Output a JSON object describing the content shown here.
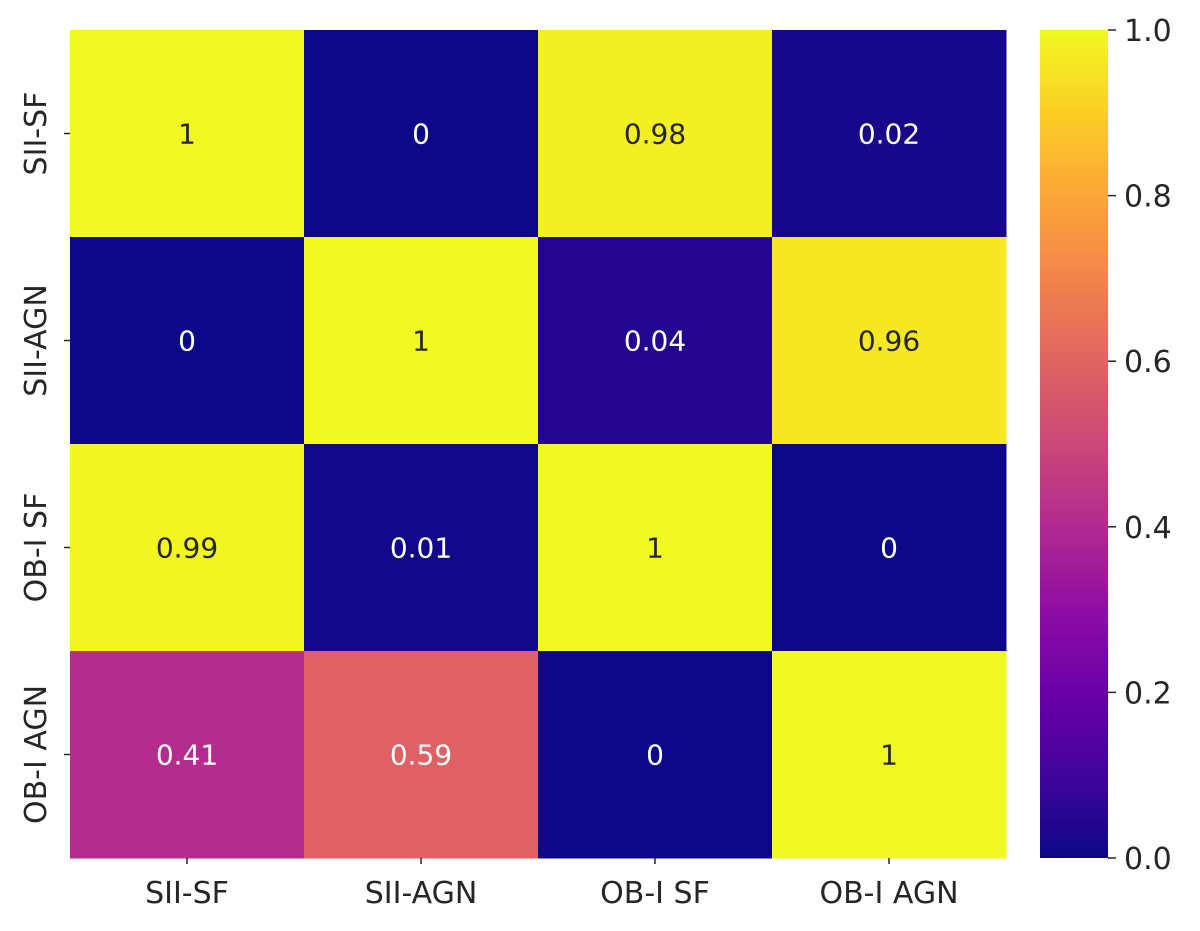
{
  "chart_data": {
    "type": "heatmap",
    "colormap": "plasma",
    "rows": [
      "SII-SF",
      "SII-AGN",
      "OB-I SF",
      "OB-I AGN"
    ],
    "columns": [
      "SII-SF",
      "SII-AGN",
      "OB-I SF",
      "OB-I AGN"
    ],
    "values": [
      [
        1,
        0,
        0.98,
        0.02
      ],
      [
        0,
        1,
        0.04,
        0.96
      ],
      [
        0.99,
        0.01,
        1,
        0
      ],
      [
        0.41,
        0.59,
        0,
        1
      ]
    ],
    "cell_labels": [
      [
        "1",
        "0",
        "0.98",
        "0.02"
      ],
      [
        "0",
        "1",
        "0.04",
        "0.96"
      ],
      [
        "0.99",
        "0.01",
        "1",
        "0"
      ],
      [
        "0.41",
        "0.59",
        "0",
        "1"
      ]
    ],
    "colorbar": {
      "range": [
        0.0,
        1.0
      ],
      "ticks": [
        0.0,
        0.2,
        0.4,
        0.6,
        0.8,
        1.0
      ],
      "tick_labels": [
        "0.0",
        "0.2",
        "0.4",
        "0.6",
        "0.8",
        "1.0"
      ]
    },
    "title": "",
    "xlabel": "",
    "ylabel": ""
  }
}
